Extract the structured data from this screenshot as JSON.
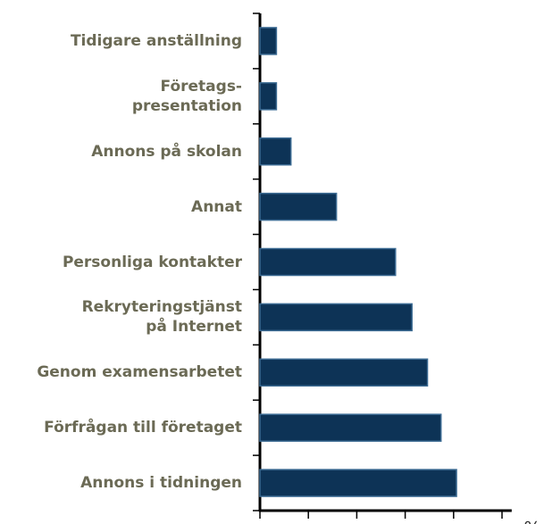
{
  "chart_data": {
    "type": "bar",
    "orientation": "horizontal",
    "categories": [
      "Tidigare anställning",
      "Företags-\npresentation",
      "Annons på skolan",
      "Annat",
      "Personliga kontakter",
      "Rekryteringstjänst\npå Internet",
      "Genom examensarbetet",
      "Förfrågan till företaget",
      "Annons i tidningen"
    ],
    "values": [
      1.7,
      1.7,
      3.2,
      7.9,
      14.0,
      15.7,
      17.3,
      18.7,
      20.3
    ],
    "color": "#0d3356",
    "xlabel": "%",
    "xlim": [
      0,
      26
    ],
    "xticks": [
      0,
      5,
      10,
      15,
      20,
      25
    ]
  }
}
